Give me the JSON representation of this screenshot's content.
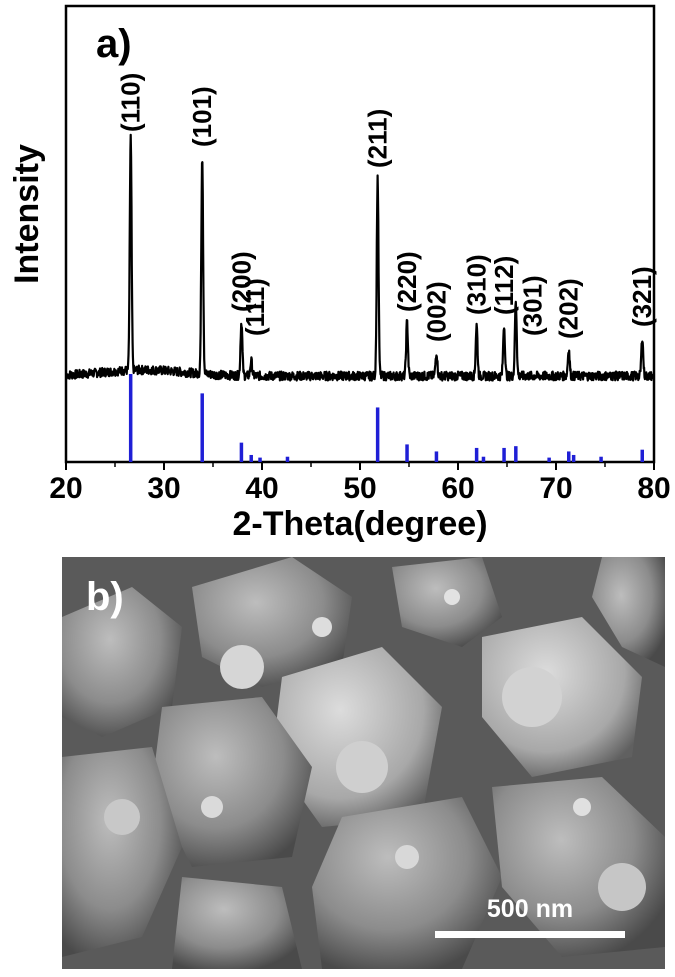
{
  "chart_data": {
    "type": "line",
    "panel_label": "a)",
    "xlabel": "2-Theta(degree)",
    "ylabel": "Intensity",
    "xlim": [
      20,
      80
    ],
    "xticks": [
      20,
      30,
      40,
      50,
      60,
      70,
      80
    ],
    "measured_peaks": [
      {
        "x": 26.6,
        "height": 0.78
      },
      {
        "x": 33.9,
        "height": 0.73
      },
      {
        "x": 37.9,
        "height": 0.18
      },
      {
        "x": 38.9,
        "height": 0.05
      },
      {
        "x": 51.8,
        "height": 0.66
      },
      {
        "x": 54.8,
        "height": 0.18
      },
      {
        "x": 57.8,
        "height": 0.08
      },
      {
        "x": 61.9,
        "height": 0.17
      },
      {
        "x": 64.7,
        "height": 0.17
      },
      {
        "x": 65.9,
        "height": 0.25
      },
      {
        "x": 71.3,
        "height": 0.09
      },
      {
        "x": 78.8,
        "height": 0.13
      }
    ],
    "reference_lines": [
      {
        "x": 26.6,
        "height": 1.0
      },
      {
        "x": 33.9,
        "height": 0.78
      },
      {
        "x": 37.9,
        "height": 0.22
      },
      {
        "x": 38.9,
        "height": 0.08
      },
      {
        "x": 39.8,
        "height": 0.05
      },
      {
        "x": 42.6,
        "height": 0.06
      },
      {
        "x": 51.8,
        "height": 0.62
      },
      {
        "x": 54.8,
        "height": 0.2
      },
      {
        "x": 57.8,
        "height": 0.12
      },
      {
        "x": 61.9,
        "height": 0.16
      },
      {
        "x": 62.6,
        "height": 0.06
      },
      {
        "x": 64.7,
        "height": 0.16
      },
      {
        "x": 65.9,
        "height": 0.18
      },
      {
        "x": 69.3,
        "height": 0.05
      },
      {
        "x": 71.3,
        "height": 0.12
      },
      {
        "x": 71.8,
        "height": 0.08
      },
      {
        "x": 74.6,
        "height": 0.06
      },
      {
        "x": 78.8,
        "height": 0.14
      }
    ],
    "annotations": [
      {
        "text": "(110)",
        "x": 26.6
      },
      {
        "text": "(101)",
        "x": 33.9
      },
      {
        "text": "(200)",
        "x": 37.9
      },
      {
        "text": "(111)",
        "x": 39.3
      },
      {
        "text": "(211)",
        "x": 51.8
      },
      {
        "text": "(220)",
        "x": 54.8
      },
      {
        "text": "(002)",
        "x": 57.8
      },
      {
        "text": "(310)",
        "x": 61.9
      },
      {
        "text": "(112)",
        "x": 64.7
      },
      {
        "text": "(301)",
        "x": 67.6
      },
      {
        "text": "(202)",
        "x": 71.3
      },
      {
        "text": "(321)",
        "x": 78.8
      }
    ],
    "colors": {
      "measured": "#000000",
      "reference": "#1f1fd6"
    }
  },
  "sem": {
    "panel_label": "b)",
    "scale_bar_label": "500 nm"
  }
}
